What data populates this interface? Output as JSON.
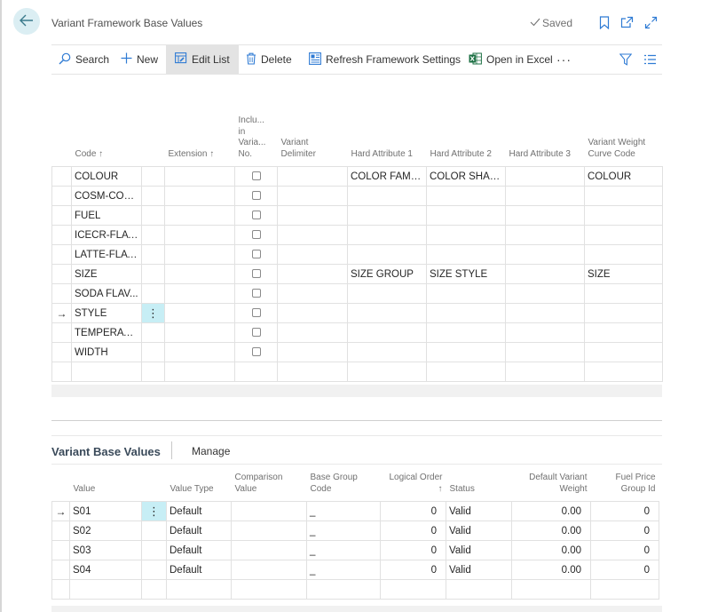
{
  "header": {
    "title": "Variant Framework Base Values",
    "saved_label": "Saved"
  },
  "actions": {
    "search": "Search",
    "new": "New",
    "edit_list": "Edit List",
    "delete": "Delete",
    "refresh": "Refresh Framework Settings",
    "open_excel": "Open in Excel",
    "more": "···"
  },
  "main_table": {
    "columns": {
      "code": "Code ↑",
      "extension": "Extension ↑",
      "incl": "Inclu... in Varia... No.",
      "delimiter": "Variant Delimiter",
      "hard1": "Hard Attribute 1",
      "hard2": "Hard Attribute 2",
      "hard3": "Hard Attribute 3",
      "curve": "Variant Weight Curve Code"
    },
    "rows": [
      {
        "code": "COLOUR",
        "extension": "",
        "delimiter": "",
        "hard1": "COLOR FAMILY",
        "hard2": "COLOR SHADE",
        "hard3": "",
        "curve": "COLOUR"
      },
      {
        "code": "COSM-COLO...",
        "extension": "",
        "delimiter": "",
        "hard1": "",
        "hard2": "",
        "hard3": "",
        "curve": ""
      },
      {
        "code": "FUEL",
        "extension": "",
        "delimiter": "",
        "hard1": "",
        "hard2": "",
        "hard3": "",
        "curve": ""
      },
      {
        "code": "ICECR-FLAV...",
        "extension": "",
        "delimiter": "",
        "hard1": "",
        "hard2": "",
        "hard3": "",
        "curve": ""
      },
      {
        "code": "LATTE-FLAV...",
        "extension": "",
        "delimiter": "",
        "hard1": "",
        "hard2": "",
        "hard3": "",
        "curve": ""
      },
      {
        "code": "SIZE",
        "extension": "",
        "delimiter": "",
        "hard1": "SIZE GROUP",
        "hard2": "SIZE STYLE",
        "hard3": "",
        "curve": "SIZE"
      },
      {
        "code": "SODA FLAV...",
        "extension": "",
        "delimiter": "",
        "hard1": "",
        "hard2": "",
        "hard3": "",
        "curve": ""
      },
      {
        "code": "STYLE",
        "extension": "",
        "delimiter": "",
        "hard1": "",
        "hard2": "",
        "hard3": "",
        "curve": ""
      },
      {
        "code": "TEMPERATU...",
        "extension": "",
        "delimiter": "",
        "hard1": "",
        "hard2": "",
        "hard3": "",
        "curve": ""
      },
      {
        "code": "WIDTH",
        "extension": "",
        "delimiter": "",
        "hard1": "",
        "hard2": "",
        "hard3": "",
        "curve": ""
      }
    ],
    "current_row": "→",
    "row_menu": "⋮"
  },
  "subpage": {
    "title": "Variant Base Values",
    "manage": "Manage",
    "columns": {
      "value": "Value",
      "value_type": "Value Type",
      "comparison": "Comparison Value",
      "base_group": "Base Group Code",
      "logical_order": "Logical Order ↑",
      "status": "Status",
      "default_weight": "Default Variant Weight",
      "fuel_price": "Fuel Price Group Id"
    },
    "rows": [
      {
        "value": "S01",
        "value_type": "Default",
        "comparison": "",
        "base_group": "_",
        "logical_order": "0",
        "status": "Valid",
        "default_weight": "0.00",
        "fuel_price": "0"
      },
      {
        "value": "S02",
        "value_type": "Default",
        "comparison": "",
        "base_group": "_",
        "logical_order": "0",
        "status": "Valid",
        "default_weight": "0.00",
        "fuel_price": "0"
      },
      {
        "value": "S03",
        "value_type": "Default",
        "comparison": "",
        "base_group": "_",
        "logical_order": "0",
        "status": "Valid",
        "default_weight": "0.00",
        "fuel_price": "0"
      },
      {
        "value": "S04",
        "value_type": "Default",
        "comparison": "",
        "base_group": "_",
        "logical_order": "0",
        "status": "Valid",
        "default_weight": "0.00",
        "fuel_price": "0"
      }
    ],
    "current_row": "→",
    "row_menu": "⋮"
  }
}
